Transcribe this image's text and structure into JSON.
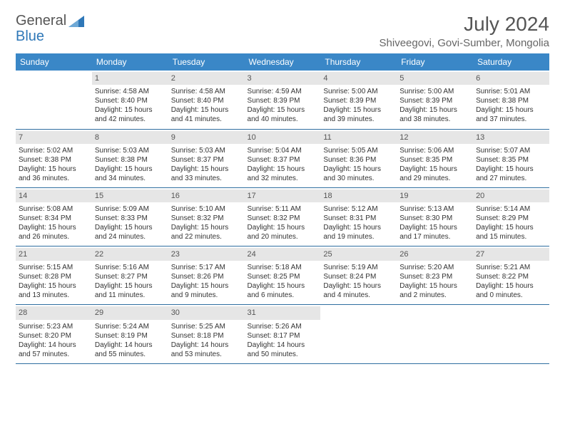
{
  "logo": {
    "text1": "General",
    "text2": "Blue"
  },
  "title": "July 2024",
  "location": "Shiveegovi, Govi-Sumber, Mongolia",
  "colors": {
    "header_bg": "#3a87c7",
    "header_text": "#ffffff",
    "daynum_bg": "#e6e6e6",
    "border": "#2e6ea0",
    "logo_blue": "#2f78b8"
  },
  "day_headers": [
    "Sunday",
    "Monday",
    "Tuesday",
    "Wednesday",
    "Thursday",
    "Friday",
    "Saturday"
  ],
  "weeks": [
    [
      null,
      {
        "n": "1",
        "sr": "Sunrise: 4:58 AM",
        "ss": "Sunset: 8:40 PM",
        "d1": "Daylight: 15 hours",
        "d2": "and 42 minutes."
      },
      {
        "n": "2",
        "sr": "Sunrise: 4:58 AM",
        "ss": "Sunset: 8:40 PM",
        "d1": "Daylight: 15 hours",
        "d2": "and 41 minutes."
      },
      {
        "n": "3",
        "sr": "Sunrise: 4:59 AM",
        "ss": "Sunset: 8:39 PM",
        "d1": "Daylight: 15 hours",
        "d2": "and 40 minutes."
      },
      {
        "n": "4",
        "sr": "Sunrise: 5:00 AM",
        "ss": "Sunset: 8:39 PM",
        "d1": "Daylight: 15 hours",
        "d2": "and 39 minutes."
      },
      {
        "n": "5",
        "sr": "Sunrise: 5:00 AM",
        "ss": "Sunset: 8:39 PM",
        "d1": "Daylight: 15 hours",
        "d2": "and 38 minutes."
      },
      {
        "n": "6",
        "sr": "Sunrise: 5:01 AM",
        "ss": "Sunset: 8:38 PM",
        "d1": "Daylight: 15 hours",
        "d2": "and 37 minutes."
      }
    ],
    [
      {
        "n": "7",
        "sr": "Sunrise: 5:02 AM",
        "ss": "Sunset: 8:38 PM",
        "d1": "Daylight: 15 hours",
        "d2": "and 36 minutes."
      },
      {
        "n": "8",
        "sr": "Sunrise: 5:03 AM",
        "ss": "Sunset: 8:38 PM",
        "d1": "Daylight: 15 hours",
        "d2": "and 34 minutes."
      },
      {
        "n": "9",
        "sr": "Sunrise: 5:03 AM",
        "ss": "Sunset: 8:37 PM",
        "d1": "Daylight: 15 hours",
        "d2": "and 33 minutes."
      },
      {
        "n": "10",
        "sr": "Sunrise: 5:04 AM",
        "ss": "Sunset: 8:37 PM",
        "d1": "Daylight: 15 hours",
        "d2": "and 32 minutes."
      },
      {
        "n": "11",
        "sr": "Sunrise: 5:05 AM",
        "ss": "Sunset: 8:36 PM",
        "d1": "Daylight: 15 hours",
        "d2": "and 30 minutes."
      },
      {
        "n": "12",
        "sr": "Sunrise: 5:06 AM",
        "ss": "Sunset: 8:35 PM",
        "d1": "Daylight: 15 hours",
        "d2": "and 29 minutes."
      },
      {
        "n": "13",
        "sr": "Sunrise: 5:07 AM",
        "ss": "Sunset: 8:35 PM",
        "d1": "Daylight: 15 hours",
        "d2": "and 27 minutes."
      }
    ],
    [
      {
        "n": "14",
        "sr": "Sunrise: 5:08 AM",
        "ss": "Sunset: 8:34 PM",
        "d1": "Daylight: 15 hours",
        "d2": "and 26 minutes."
      },
      {
        "n": "15",
        "sr": "Sunrise: 5:09 AM",
        "ss": "Sunset: 8:33 PM",
        "d1": "Daylight: 15 hours",
        "d2": "and 24 minutes."
      },
      {
        "n": "16",
        "sr": "Sunrise: 5:10 AM",
        "ss": "Sunset: 8:32 PM",
        "d1": "Daylight: 15 hours",
        "d2": "and 22 minutes."
      },
      {
        "n": "17",
        "sr": "Sunrise: 5:11 AM",
        "ss": "Sunset: 8:32 PM",
        "d1": "Daylight: 15 hours",
        "d2": "and 20 minutes."
      },
      {
        "n": "18",
        "sr": "Sunrise: 5:12 AM",
        "ss": "Sunset: 8:31 PM",
        "d1": "Daylight: 15 hours",
        "d2": "and 19 minutes."
      },
      {
        "n": "19",
        "sr": "Sunrise: 5:13 AM",
        "ss": "Sunset: 8:30 PM",
        "d1": "Daylight: 15 hours",
        "d2": "and 17 minutes."
      },
      {
        "n": "20",
        "sr": "Sunrise: 5:14 AM",
        "ss": "Sunset: 8:29 PM",
        "d1": "Daylight: 15 hours",
        "d2": "and 15 minutes."
      }
    ],
    [
      {
        "n": "21",
        "sr": "Sunrise: 5:15 AM",
        "ss": "Sunset: 8:28 PM",
        "d1": "Daylight: 15 hours",
        "d2": "and 13 minutes."
      },
      {
        "n": "22",
        "sr": "Sunrise: 5:16 AM",
        "ss": "Sunset: 8:27 PM",
        "d1": "Daylight: 15 hours",
        "d2": "and 11 minutes."
      },
      {
        "n": "23",
        "sr": "Sunrise: 5:17 AM",
        "ss": "Sunset: 8:26 PM",
        "d1": "Daylight: 15 hours",
        "d2": "and 9 minutes."
      },
      {
        "n": "24",
        "sr": "Sunrise: 5:18 AM",
        "ss": "Sunset: 8:25 PM",
        "d1": "Daylight: 15 hours",
        "d2": "and 6 minutes."
      },
      {
        "n": "25",
        "sr": "Sunrise: 5:19 AM",
        "ss": "Sunset: 8:24 PM",
        "d1": "Daylight: 15 hours",
        "d2": "and 4 minutes."
      },
      {
        "n": "26",
        "sr": "Sunrise: 5:20 AM",
        "ss": "Sunset: 8:23 PM",
        "d1": "Daylight: 15 hours",
        "d2": "and 2 minutes."
      },
      {
        "n": "27",
        "sr": "Sunrise: 5:21 AM",
        "ss": "Sunset: 8:22 PM",
        "d1": "Daylight: 15 hours",
        "d2": "and 0 minutes."
      }
    ],
    [
      {
        "n": "28",
        "sr": "Sunrise: 5:23 AM",
        "ss": "Sunset: 8:20 PM",
        "d1": "Daylight: 14 hours",
        "d2": "and 57 minutes."
      },
      {
        "n": "29",
        "sr": "Sunrise: 5:24 AM",
        "ss": "Sunset: 8:19 PM",
        "d1": "Daylight: 14 hours",
        "d2": "and 55 minutes."
      },
      {
        "n": "30",
        "sr": "Sunrise: 5:25 AM",
        "ss": "Sunset: 8:18 PM",
        "d1": "Daylight: 14 hours",
        "d2": "and 53 minutes."
      },
      {
        "n": "31",
        "sr": "Sunrise: 5:26 AM",
        "ss": "Sunset: 8:17 PM",
        "d1": "Daylight: 14 hours",
        "d2": "and 50 minutes."
      },
      null,
      null,
      null
    ]
  ]
}
